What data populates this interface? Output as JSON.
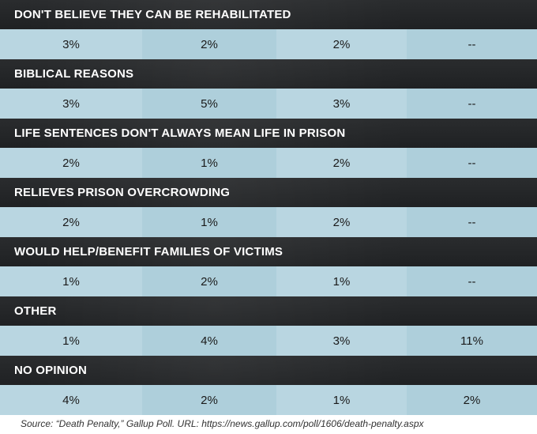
{
  "rows": [
    {
      "label": "DON'T BELIEVE THEY CAN BE REHABILITATED",
      "values": [
        "3%",
        "2%",
        "2%",
        "--"
      ]
    },
    {
      "label": "BIBLICAL REASONS",
      "values": [
        "3%",
        "5%",
        "3%",
        "--"
      ]
    },
    {
      "label": "LIFE SENTENCES DON'T ALWAYS MEAN LIFE IN PRISON",
      "values": [
        "2%",
        "1%",
        "2%",
        "--"
      ]
    },
    {
      "label": "RELIEVES PRISON OVERCROWDING",
      "values": [
        "2%",
        "1%",
        "2%",
        "--"
      ]
    },
    {
      "label": "WOULD HELP/BENEFIT FAMILIES OF VICTIMS",
      "values": [
        "1%",
        "2%",
        "1%",
        "--"
      ]
    },
    {
      "label": "OTHER",
      "values": [
        "1%",
        "4%",
        "3%",
        "11%"
      ]
    },
    {
      "label": "NO OPINION",
      "values": [
        "4%",
        "2%",
        "1%",
        "2%"
      ]
    }
  ],
  "source": "Source: “Death Penalty,” Gallup Poll. URL: https://news.gallup.com/poll/1606/death-penalty.aspx",
  "colors": {
    "header_bg": "#242628",
    "cell_light": "#b9d6e1",
    "cell_mid": "#aecfdb"
  }
}
